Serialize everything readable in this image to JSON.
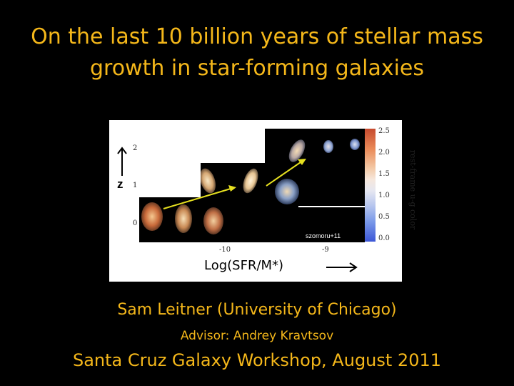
{
  "slide": {
    "title_line1": "On the last 10 billion years of stellar mass",
    "title_line2": "growth in star-forming galaxies",
    "author": "Sam Leitner (University of Chicago)",
    "advisor": "Advisor: Andrey Kravtsov",
    "venue": "Santa Cruz Galaxy Workshop,  August 2011"
  },
  "figure": {
    "z_label": "z",
    "x_axis_label": "Log(SFR/M*)",
    "y_ticks": [
      "2",
      "1",
      "0"
    ],
    "x_ticks": [
      "-10",
      "-9"
    ],
    "colorbar_ticks": [
      "2.5",
      "2.0",
      "1.5",
      "1.0",
      "0.5",
      "0.0"
    ],
    "colorbar_label": "rest-frame u-g color",
    "credit": "szomoru+11",
    "arrow_color": "#e6e020",
    "title_color": "#f4b71a"
  }
}
